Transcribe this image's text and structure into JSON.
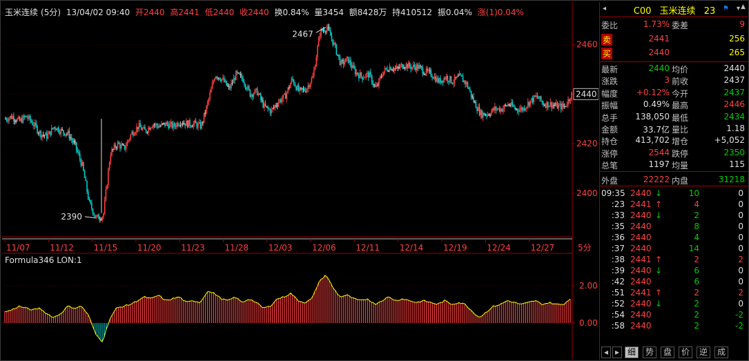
{
  "header": {
    "name": "玉米连续",
    "period": "(5分)",
    "time": "13/04/02 09:40",
    "open": "开2440",
    "high": "高2441",
    "low": "低2440",
    "close": "收2440",
    "turnover_rate": "换0.84%",
    "volume": "量3454",
    "amount": "额8428万",
    "open_interest": "持410512",
    "amplitude": "振0.04%",
    "change": "涨(1)0.04%"
  },
  "panel_title": "Formula346 LON:1",
  "chart_data": {
    "type": "line",
    "main": {
      "ylim": [
        2383,
        2471
      ],
      "ticks": [
        "2460",
        "2440",
        "2420",
        "2400"
      ],
      "current_price_label": "2440",
      "annotations": [
        {
          "text": "2467"
        },
        {
          "text": "2390"
        }
      ],
      "x_labels": [
        "11/07",
        "11/12",
        "11/15",
        "11/20",
        "11/23",
        "11/28",
        "12/03",
        "12/06",
        "12/11",
        "12/14",
        "12/19",
        "12/24",
        "12/27"
      ],
      "period_label": "5分",
      "series_anchor_values": [
        2430,
        2431,
        2429,
        2431,
        2428,
        2424,
        2423,
        2427,
        2425,
        2424,
        2419,
        2411,
        2396,
        2390,
        2391,
        2416,
        2420,
        2418,
        2424,
        2427,
        2425,
        2428,
        2427,
        2428,
        2427,
        2429,
        2428,
        2428,
        2427,
        2437,
        2448,
        2446,
        2442,
        2448,
        2446,
        2440,
        2441,
        2435,
        2433,
        2437,
        2439,
        2446,
        2441,
        2442,
        2447,
        2465,
        2467,
        2460,
        2452,
        2454,
        2449,
        2447,
        2448,
        2442,
        2449,
        2451,
        2450,
        2452,
        2451,
        2451,
        2449,
        2448,
        2445,
        2447,
        2445,
        2447,
        2444,
        2437,
        2432,
        2432,
        2434,
        2434,
        2436,
        2434,
        2434,
        2437,
        2439,
        2436,
        2436,
        2435,
        2435,
        2440
      ]
    },
    "oscillator": {
      "name": "LON",
      "ticks": [
        "2.00",
        "0.00"
      ],
      "ylim": [
        -1.3,
        3.0
      ],
      "values": [
        0.6,
        0.7,
        0.9,
        0.8,
        0.7,
        0.8,
        0.5,
        0.3,
        0.5,
        0.9,
        0.8,
        0.9,
        0.4,
        -0.6,
        -1.0,
        0.2,
        0.8,
        0.9,
        1.0,
        1.2,
        1.4,
        1.3,
        1.5,
        1.2,
        1.3,
        1.4,
        1.1,
        1.2,
        1.1,
        1.7,
        1.6,
        1.3,
        1.2,
        1.4,
        1.1,
        1.3,
        1.1,
        0.8,
        0.9,
        1.3,
        1.4,
        1.6,
        1.2,
        1.1,
        1.3,
        2.2,
        2.6,
        1.9,
        1.4,
        1.5,
        1.3,
        1.2,
        1.3,
        1.0,
        1.2,
        1.4,
        1.2,
        1.3,
        1.2,
        1.1,
        1.2,
        1.1,
        1.0,
        1.2,
        1.0,
        1.1,
        1.0,
        0.6,
        0.3,
        0.6,
        0.9,
        1.0,
        1.2,
        1.1,
        1.0,
        1.1,
        1.2,
        1.0,
        1.1,
        1.0,
        1.0,
        1.3
      ]
    }
  },
  "quote_panel": {
    "code": "C00",
    "name": "玉米连续",
    "number": "23",
    "rows_top": [
      {
        "label": "委比",
        "value": "1.73%",
        "label2": "委差",
        "value2": "9"
      },
      {
        "label": "卖",
        "value": "2441",
        "value2": "256"
      },
      {
        "label": "买",
        "value": "2440",
        "value2": "265"
      }
    ],
    "stats": [
      {
        "label": "最新",
        "value": "2440",
        "label2": "均价",
        "value2": "2440"
      },
      {
        "label": "涨跌",
        "value": "3",
        "label2": "前收",
        "value2": "2437"
      },
      {
        "label": "幅度",
        "value": "+0.12%",
        "label2": "今开",
        "value2": "2437"
      },
      {
        "label": "振幅",
        "value": "0.49%",
        "label2": "最高",
        "value2": "2446"
      },
      {
        "label": "总手",
        "value": "138,050",
        "label2": "最低",
        "value2": "2434"
      },
      {
        "label": "金额",
        "value": "33.7亿",
        "label2": "量比",
        "value2": "1.18"
      },
      {
        "label": "持仓",
        "value": "413,702",
        "label2": "增仓",
        "value2": "+5,052"
      },
      {
        "label": "涨停",
        "value": "2544",
        "label2": "跌停",
        "value2": "2350"
      },
      {
        "label": "总笔",
        "value": "1197",
        "label2": "均量",
        "value2": "115"
      }
    ],
    "outer": {
      "label": "外盘",
      "value": "22222",
      "label2": "内盘",
      "value2": "31218"
    },
    "ticks": [
      {
        "time": "09:35",
        "price": "2440",
        "dir": "↓",
        "vol": "10",
        "chg": "0"
      },
      {
        "time": ":23",
        "price": "2441",
        "dir": "↑",
        "vol": "4",
        "chg": "0"
      },
      {
        "time": ":33",
        "price": "2440",
        "dir": "↓",
        "vol": "2",
        "chg": "0"
      },
      {
        "time": ":35",
        "price": "2440",
        "dir": "",
        "vol": "8",
        "chg": "0"
      },
      {
        "time": ":36",
        "price": "2440",
        "dir": "",
        "vol": "4",
        "chg": "0"
      },
      {
        "time": ":37",
        "price": "2440",
        "dir": "",
        "vol": "14",
        "chg": "0"
      },
      {
        "time": ":38",
        "price": "2441",
        "dir": "↑",
        "vol": "2",
        "chg": "2"
      },
      {
        "time": ":39",
        "price": "2440",
        "dir": "↓",
        "vol": "6",
        "chg": "0"
      },
      {
        "time": ":42",
        "price": "2440",
        "dir": "",
        "vol": "6",
        "chg": "0"
      },
      {
        "time": ":51",
        "price": "2441",
        "dir": "↑",
        "vol": "2",
        "chg": "2"
      },
      {
        "time": ":52",
        "price": "2440",
        "dir": "↓",
        "vol": "2",
        "chg": "0"
      },
      {
        "time": ":54",
        "price": "2440",
        "dir": "",
        "vol": "2",
        "chg": "-2"
      },
      {
        "time": ":58",
        "price": "2440",
        "dir": "",
        "vol": "2",
        "chg": "-2"
      }
    ],
    "tabs": [
      "细",
      "势",
      "盘",
      "价",
      "逆",
      "成"
    ]
  },
  "colors": {
    "up": "#ff4040",
    "down": "#00d0d0",
    "flat": "#e0e0e0",
    "grid": "#8b0000",
    "accent": "#ffff00"
  }
}
